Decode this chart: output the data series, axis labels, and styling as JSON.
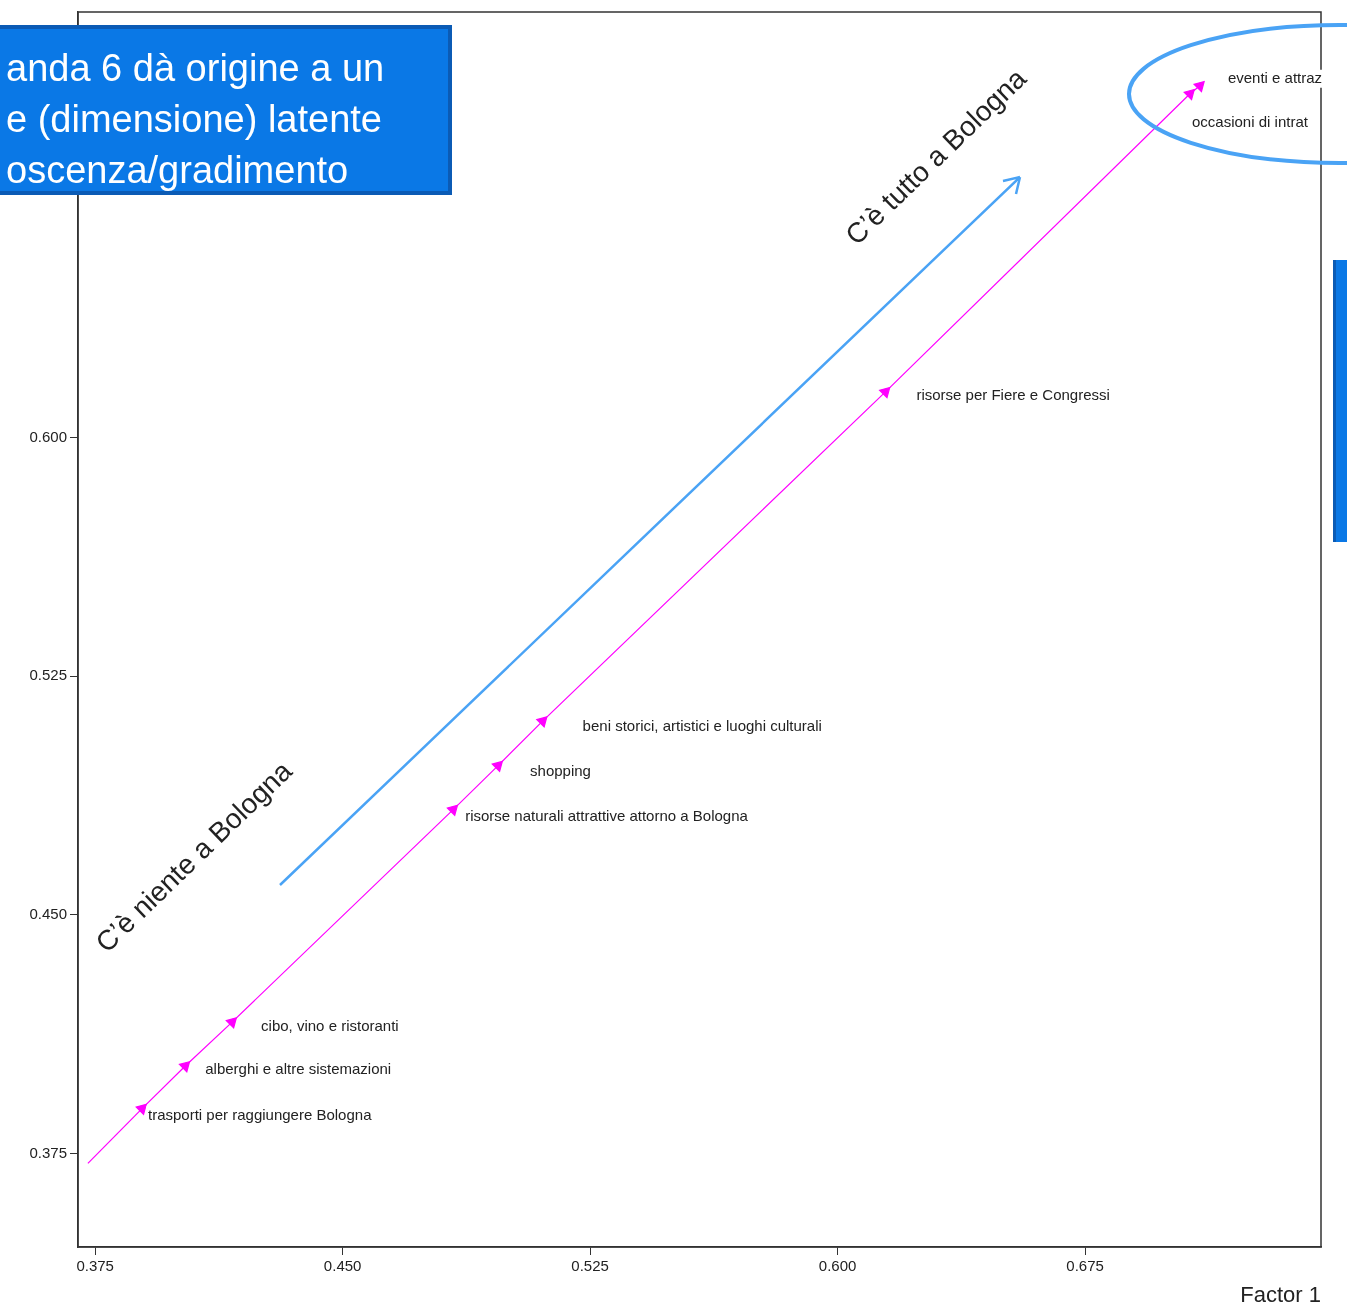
{
  "chart_data": {
    "type": "scatter",
    "xlabel": "Factor 1",
    "xlim": [
      0.3698,
      0.7465
    ],
    "ylim": [
      0.3456,
      0.7338
    ],
    "xticks": [
      {
        "value": 0.375,
        "label": "0.375"
      },
      {
        "value": 0.45,
        "label": "0.450"
      },
      {
        "value": 0.525,
        "label": "0.525"
      },
      {
        "value": 0.6,
        "label": "0.600"
      },
      {
        "value": 0.675,
        "label": "0.675"
      }
    ],
    "yticks": [
      {
        "value": 0.375,
        "label": "0.375"
      },
      {
        "value": 0.45,
        "label": "0.450"
      },
      {
        "value": 0.525,
        "label": "0.525"
      },
      {
        "value": 0.6,
        "label": "0.600"
      }
    ],
    "grid": false,
    "legend": false,
    "marker": "triangle",
    "series": [
      {
        "type": "line",
        "color": "#ff00ff",
        "x": [
          0.3892,
          0.4023,
          0.4165,
          0.4835,
          0.4971,
          0.5106,
          0.6145,
          0.7068,
          0.7098
        ],
        "values": [
          0.3891,
          0.4025,
          0.4163,
          0.4831,
          0.4969,
          0.5109,
          0.6144,
          0.7081,
          0.7106
        ]
      },
      {
        "type": "line",
        "color": "#ff00ff",
        "marker": "none",
        "x": [
          0.3728,
          0.3892
        ],
        "values": [
          0.3719,
          0.3891
        ]
      }
    ],
    "annotations": [
      {
        "text": "trasporti per raggiungere Bologna",
        "x": 0.3892,
        "y": 0.3891
      },
      {
        "text": "alberghi e altre sistemazioni",
        "x": 0.4023,
        "y": 0.4025
      },
      {
        "text": "cibo, vino e ristoranti",
        "x": 0.4165,
        "y": 0.4163
      },
      {
        "text": "risorse naturali attrattive attorno a Bologna",
        "x": 0.4835,
        "y": 0.4831
      },
      {
        "text": "shopping",
        "x": 0.4971,
        "y": 0.4969
      },
      {
        "text": "beni storici, artistici e luoghi culturali",
        "x": 0.5106,
        "y": 0.5109
      },
      {
        "text": "risorse per Fiere e Congressi",
        "x": 0.6145,
        "y": 0.6144
      },
      {
        "text": "occasioni di intrat",
        "x": 0.7068,
        "y": 0.7081
      },
      {
        "text": "eventi e attraz",
        "x": 0.7098,
        "y": 0.7106
      },
      "C’è niente a Bologna",
      "C’è tutto a Bologna",
      "anda 6 dà origine a un\ne (dimensione) latente\noscenza/gradimento"
    ]
  }
}
